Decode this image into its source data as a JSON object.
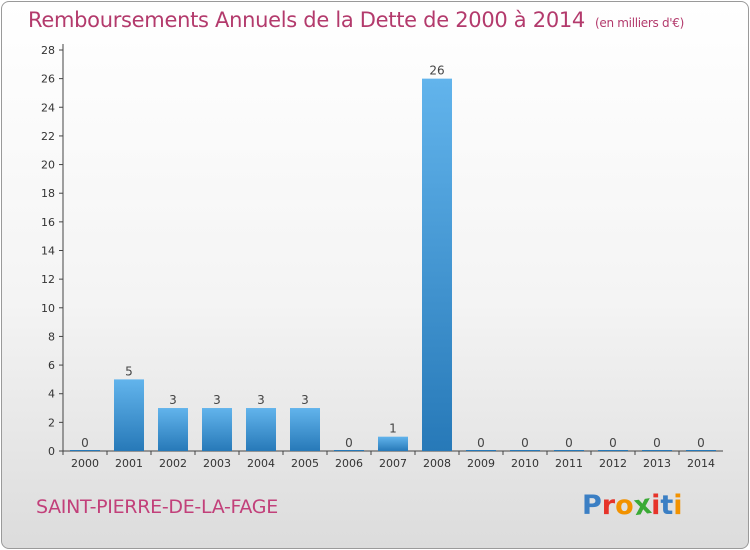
{
  "title": "Remboursements Annuels de la Dette de 2000 à 2014",
  "title_unit": "(en milliers d'€)",
  "commune": "SAINT-PIERRE-DE-LA-FAGE",
  "logo": {
    "letters": [
      "P",
      "r",
      "o",
      "x",
      "i",
      "t",
      "i"
    ],
    "colors": [
      "#3b7fc4",
      "#e6332a",
      "#f29200",
      "#3aaa35",
      "#e6332a",
      "#3b7fc4",
      "#f29200"
    ]
  },
  "colors": {
    "title": "#b33a6c",
    "bar_top": "#62b4ec",
    "bar_bottom": "#2779b8",
    "axis": "#444444",
    "grid": "#bbbbbb"
  },
  "chart_data": {
    "type": "bar",
    "title": "Remboursements Annuels de la Dette de 2000 à 2014",
    "categories": [
      "2000",
      "2001",
      "2002",
      "2003",
      "2004",
      "2005",
      "2006",
      "2007",
      "2008",
      "2009",
      "2010",
      "2011",
      "2012",
      "2013",
      "2014"
    ],
    "values": [
      0,
      5,
      3,
      3,
      3,
      3,
      0,
      1,
      26,
      0,
      0,
      0,
      0,
      0,
      0
    ],
    "yticks": [
      0,
      2,
      4,
      6,
      8,
      10,
      12,
      14,
      16,
      18,
      20,
      22,
      24,
      26,
      28
    ],
    "ylim": [
      0,
      28
    ],
    "xlabel": "",
    "ylabel": "",
    "grid": false,
    "data_labels": true
  }
}
